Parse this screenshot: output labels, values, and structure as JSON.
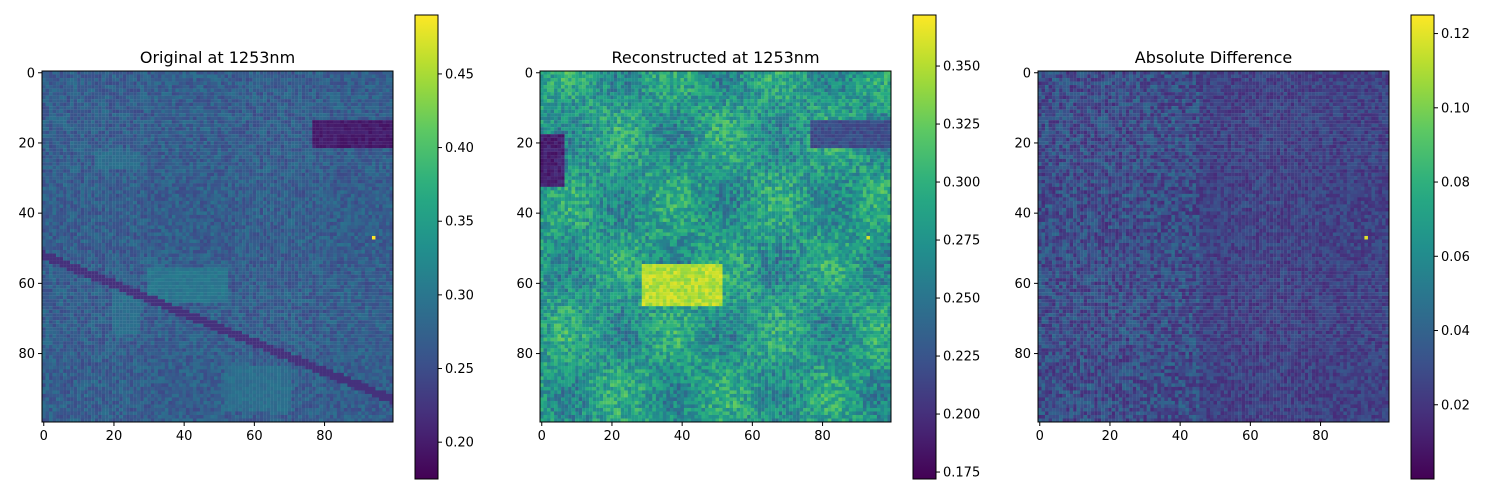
{
  "chart_data": [
    {
      "type": "heatmap",
      "title": "Original at 1253nm",
      "xlabel": "",
      "ylabel": "",
      "xlim": [
        0,
        99
      ],
      "ylim": [
        99,
        0
      ],
      "xticks": [
        0,
        20,
        40,
        60,
        80
      ],
      "yticks": [
        0,
        20,
        40,
        60,
        80
      ],
      "colormap": "viridis",
      "colorbar": {
        "range": [
          0.175,
          0.49
        ],
        "ticks": [
          0.2,
          0.25,
          0.3,
          0.35,
          0.4,
          0.45
        ]
      },
      "grid_size": [
        100,
        100
      ],
      "features": {
        "base_value": 0.27,
        "diagonal_road": {
          "from": [
            0,
            52
          ],
          "to": [
            99,
            93
          ],
          "value": 0.22
        },
        "dark_patch": {
          "x": [
            77,
            99
          ],
          "y": [
            14,
            21
          ],
          "value": 0.2
        },
        "bright_patches": [
          {
            "x": [
              15,
              27
            ],
            "y": [
              23,
              27
            ],
            "value": 0.29
          },
          {
            "x": [
              30,
              52
            ],
            "y": [
              56,
              65
            ],
            "value": 0.3
          },
          {
            "x": [
              20,
              27
            ],
            "y": [
              63,
              74
            ],
            "value": 0.29
          },
          {
            "x": [
              52,
              70
            ],
            "y": [
              84,
              96
            ],
            "value": 0.29
          }
        ],
        "hot_pixel": {
          "x": 94,
          "y": 47,
          "value": 0.49
        }
      }
    },
    {
      "type": "heatmap",
      "title": "Reconstructed at 1253nm",
      "xlabel": "",
      "ylabel": "",
      "xlim": [
        0,
        99
      ],
      "ylim": [
        99,
        0
      ],
      "xticks": [
        0,
        20,
        40,
        60,
        80
      ],
      "yticks": [
        0,
        20,
        40,
        60,
        80
      ],
      "colormap": "viridis",
      "colorbar": {
        "range": [
          0.172,
          0.372
        ],
        "ticks": [
          0.175,
          0.2,
          0.225,
          0.25,
          0.275,
          0.3,
          0.325,
          0.35
        ]
      },
      "grid_size": [
        100,
        100
      ],
      "features": {
        "base_value": 0.28,
        "bright_blob": {
          "x": [
            29,
            51
          ],
          "y": [
            55,
            66
          ],
          "value": 0.35
        },
        "dark_patch": {
          "x": [
            77,
            99
          ],
          "y": [
            14,
            21
          ],
          "value": 0.22
        },
        "dark_left_edge": {
          "x": [
            0,
            6
          ],
          "y": [
            18,
            32
          ],
          "value": 0.19
        },
        "hot_pixel": {
          "x": 93,
          "y": 47,
          "value": 0.36
        }
      }
    },
    {
      "type": "heatmap",
      "title": "Absolute Difference",
      "xlabel": "",
      "ylabel": "",
      "xlim": [
        0,
        99
      ],
      "ylim": [
        99,
        0
      ],
      "xticks": [
        0,
        20,
        40,
        60,
        80
      ],
      "yticks": [
        0,
        20,
        40,
        60,
        80
      ],
      "colormap": "viridis",
      "colorbar": {
        "range": [
          0.0,
          0.125
        ],
        "ticks": [
          0.02,
          0.04,
          0.06,
          0.08,
          0.1,
          0.12
        ]
      },
      "grid_size": [
        100,
        100
      ],
      "features": {
        "base_value": 0.015,
        "lighter_region": {
          "x": [
            0,
            45
          ],
          "y": [
            0,
            99
          ],
          "value": 0.03
        },
        "hot_pixel": {
          "x": 93,
          "y": 47,
          "value": 0.12
        }
      }
    }
  ]
}
